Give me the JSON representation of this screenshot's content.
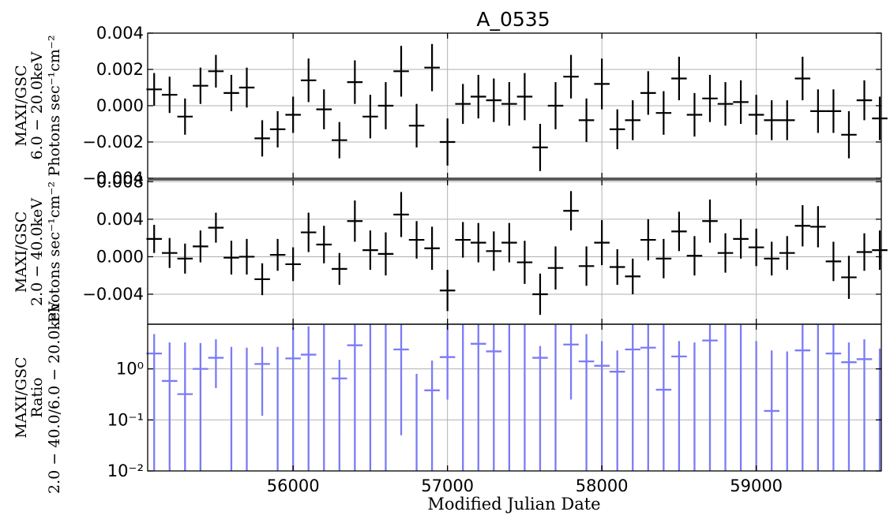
{
  "title": "A_0535",
  "xlabel": "Modified Julian Date",
  "chart_data": {
    "type": "scatter",
    "title": "A_0535",
    "xlabel": "Modified Julian Date",
    "xlim": [
      55058,
      59810
    ],
    "x_ticks": [
      56000,
      57000,
      58000,
      59000
    ],
    "x_tick_labels": [
      "56000",
      "57000",
      "58000",
      "59000"
    ],
    "grid": true,
    "panels": [
      {
        "ylabel_lines": [
          "MAXI/GSC",
          "6.0 − 20.0keV",
          "Photons sec⁻¹cm⁻²"
        ],
        "ylim": [
          -0.004,
          0.004
        ],
        "y_scale": "linear",
        "y_ticks": [
          -0.004,
          -0.002,
          0.0,
          0.002,
          0.004
        ],
        "y_tick_labels": [
          "−0.004",
          "−0.002",
          "0.000",
          "0.002",
          "0.004"
        ],
        "color": "#000000",
        "series": [
          {
            "x_halfwidth": 50,
            "x": [
              55100,
              55200,
              55300,
              55400,
              55500,
              55600,
              55700,
              55800,
              55900,
              56000,
              56100,
              56200,
              56300,
              56400,
              56500,
              56600,
              56700,
              56800,
              56900,
              57000,
              57100,
              57200,
              57300,
              57400,
              57500,
              57600,
              57700,
              57800,
              57900,
              58000,
              58100,
              58200,
              58300,
              58400,
              58500,
              58600,
              58700,
              58800,
              58900,
              59000,
              59100,
              59200,
              59300,
              59400,
              59500,
              59600,
              59700,
              59800
            ],
            "y": [
              0.0009,
              0.0006,
              -0.0006,
              0.0011,
              0.0019,
              0.0007,
              0.001,
              -0.0018,
              -0.0013,
              -0.0005,
              0.0014,
              -0.0002,
              -0.0019,
              0.0013,
              -0.0006,
              0.0,
              0.0019,
              -0.0011,
              0.0021,
              -0.002,
              0.0001,
              0.0005,
              0.0003,
              0.0001,
              0.0005,
              -0.0023,
              0.0,
              0.0016,
              -0.0008,
              0.0012,
              -0.0013,
              -0.0008,
              0.0007,
              -0.0004,
              0.0015,
              -0.0005,
              0.0004,
              0.0001,
              0.0002,
              -0.0005,
              -0.0008,
              -0.0008,
              0.0015,
              -0.0003,
              -0.0003,
              -0.0016,
              0.0003,
              -0.0007
            ],
            "yerr": [
              0.0009,
              0.001,
              0.001,
              0.001,
              0.0009,
              0.001,
              0.0011,
              0.001,
              0.001,
              0.001,
              0.0012,
              0.0011,
              0.001,
              0.0012,
              0.0012,
              0.0013,
              0.0014,
              0.0012,
              0.0013,
              0.0013,
              0.0011,
              0.0012,
              0.0012,
              0.0012,
              0.0013,
              0.0013,
              0.0013,
              0.0012,
              0.0012,
              0.0014,
              0.0011,
              0.0011,
              0.0012,
              0.0012,
              0.0012,
              0.0012,
              0.0013,
              0.0012,
              0.0012,
              0.0011,
              0.0011,
              0.0011,
              0.0012,
              0.0012,
              0.0012,
              0.0013,
              0.0011,
              0.0012
            ]
          }
        ]
      },
      {
        "ylabel_lines": [
          "MAXI/GSC",
          "2.0 − 40.0keV",
          "Photons sec⁻¹cm⁻²"
        ],
        "ylim": [
          -0.0072,
          0.0082
        ],
        "y_scale": "linear",
        "y_ticks": [
          -0.004,
          0.0,
          0.004,
          0.008
        ],
        "y_tick_labels": [
          "−0.004",
          "0.000",
          "0.004",
          "0.008"
        ],
        "color": "#000000",
        "series": [
          {
            "x_halfwidth": 50,
            "x": [
              55100,
              55200,
              55300,
              55400,
              55500,
              55600,
              55700,
              55800,
              55900,
              56000,
              56100,
              56200,
              56300,
              56400,
              56500,
              56600,
              56700,
              56800,
              56900,
              57000,
              57100,
              57200,
              57300,
              57400,
              57500,
              57600,
              57700,
              57800,
              57900,
              58000,
              58100,
              58200,
              58300,
              58400,
              58500,
              58600,
              58700,
              58800,
              58900,
              59000,
              59100,
              59200,
              59300,
              59400,
              59500,
              59600,
              59700,
              59800
            ],
            "y": [
              0.0019,
              0.0004,
              -0.0002,
              0.0011,
              0.0031,
              -0.0001,
              0.0,
              -0.0024,
              0.0002,
              -0.0008,
              0.0026,
              0.0013,
              -0.0013,
              0.0038,
              0.0007,
              0.0003,
              0.0045,
              0.0018,
              0.0009,
              -0.0036,
              0.0018,
              0.0015,
              0.0006,
              0.0015,
              -0.0006,
              -0.004,
              -0.0012,
              0.0049,
              -0.001,
              0.0015,
              -0.0011,
              -0.0021,
              0.0018,
              -0.0002,
              0.0027,
              0.0001,
              0.0038,
              0.0004,
              0.0019,
              0.001,
              -0.0002,
              0.0004,
              0.0033,
              0.0032,
              -0.0005,
              -0.0022,
              0.0005,
              0.0007
            ],
            "yerr": [
              0.0015,
              0.0016,
              0.0016,
              0.0017,
              0.0016,
              0.0018,
              0.0019,
              0.0017,
              0.0017,
              0.0018,
              0.0021,
              0.002,
              0.0017,
              0.0022,
              0.0021,
              0.0023,
              0.0024,
              0.002,
              0.0023,
              0.0022,
              0.0019,
              0.0021,
              0.0021,
              0.0021,
              0.0023,
              0.0022,
              0.0023,
              0.0021,
              0.0021,
              0.0024,
              0.0019,
              0.0019,
              0.0022,
              0.0021,
              0.0021,
              0.0021,
              0.0023,
              0.0021,
              0.0021,
              0.002,
              0.0018,
              0.0018,
              0.0022,
              0.0022,
              0.0021,
              0.0023,
              0.002,
              0.0021
            ]
          }
        ]
      },
      {
        "ylabel_lines": [
          "MAXI/GSC",
          "Ratio",
          "2.0 − 40.0/6.0 − 20.0keV"
        ],
        "ylim": [
          0.01,
          7.5
        ],
        "y_scale": "log",
        "y_ticks": [
          0.01,
          0.1,
          1
        ],
        "y_tick_labels": [
          "10⁻²",
          "10⁻¹",
          "10⁰"
        ],
        "color": "#7b7bf6",
        "series": [
          {
            "x_halfwidth": 50,
            "x": [
              55100,
              55200,
              55300,
              55400,
              55500,
              55600,
              55700,
              55800,
              55900,
              56000,
              56100,
              56200,
              56300,
              56400,
              56500,
              56600,
              56700,
              56800,
              56900,
              57000,
              57100,
              57200,
              57300,
              57400,
              57500,
              57600,
              57700,
              57800,
              57900,
              58000,
              58100,
              58200,
              58300,
              58400,
              58500,
              58600,
              58700,
              58800,
              58900,
              59000,
              59100,
              59200,
              59300,
              59400,
              59500,
              59600,
              59700,
              59800
            ],
            "y": [
              2.0,
              0.58,
              0.32,
              1.0,
              1.65,
              null,
              null,
              1.25,
              null,
              1.6,
              1.9,
              null,
              0.65,
              2.9,
              null,
              null,
              2.4,
              null,
              0.38,
              1.7,
              null,
              3.1,
              2.2,
              null,
              null,
              1.65,
              null,
              3.0,
              1.4,
              1.15,
              0.88,
              2.4,
              2.6,
              0.39,
              1.75,
              null,
              3.6,
              null,
              null,
              null,
              0.15,
              null,
              2.3,
              null,
              2.0,
              1.35,
              1.55,
              null
            ],
            "ylow": [
              0.01,
              0.01,
              0.01,
              0.01,
              0.42,
              0.01,
              0.01,
              0.12,
              0.01,
              0.01,
              0.01,
              0.01,
              0.01,
              0.01,
              0.01,
              0.01,
              0.05,
              0.01,
              0.01,
              0.25,
              0.01,
              0.01,
              0.01,
              0.01,
              0.01,
              0.01,
              0.01,
              0.25,
              0.01,
              0.01,
              0.01,
              0.01,
              0.01,
              0.01,
              0.01,
              0.01,
              0.01,
              0.01,
              0.01,
              0.01,
              0.01,
              0.01,
              0.01,
              0.01,
              0.01,
              0.01,
              0.01,
              0.01
            ],
            "yhigh": [
              4.8,
              3.3,
              3.3,
              3.2,
              3.8,
              2.7,
              2.6,
              2.7,
              2.7,
              6.5,
              6.8,
              7.5,
              1.5,
              7.5,
              7.5,
              7.5,
              7.5,
              0.8,
              1.45,
              7.5,
              7.5,
              7.5,
              7.5,
              7.5,
              7.5,
              2.8,
              7.5,
              7.5,
              4.8,
              3.5,
              2.3,
              7.5,
              7.5,
              7.5,
              3.5,
              3.3,
              7.5,
              7.5,
              7.5,
              3.5,
              2.3,
              2.2,
              7.5,
              7.5,
              7.5,
              3.3,
              3.8,
              2.5
            ]
          }
        ]
      }
    ]
  }
}
